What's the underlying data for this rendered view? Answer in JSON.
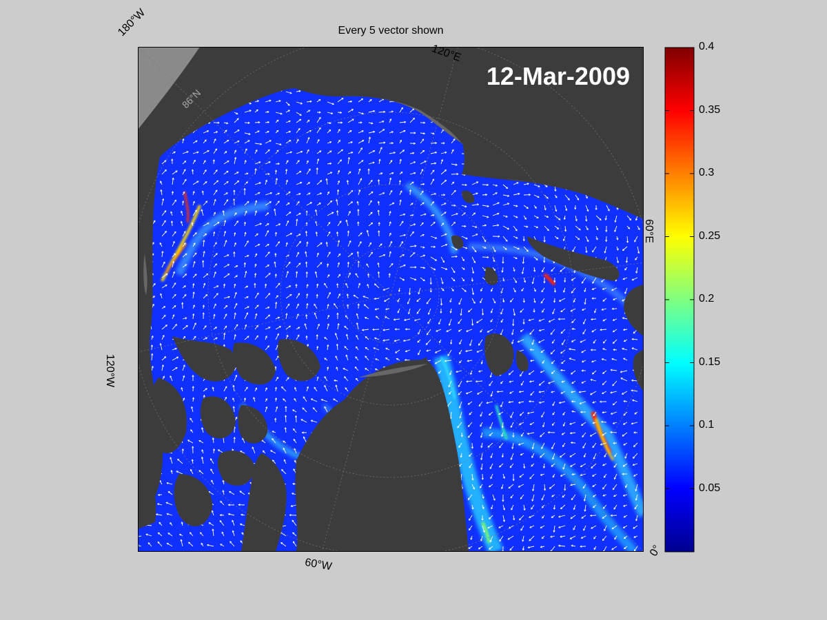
{
  "figure": {
    "title": "Every 5 vector shown",
    "date": "12-Mar-2009"
  },
  "map_labels": {
    "lon_180w": "180°W",
    "lon_120e": "120°E",
    "lon_60e": "60°E",
    "lon_120w": "120°W",
    "lon_60w": "60°W",
    "lon_0": "0°",
    "lat_86n": "86°N"
  },
  "colorbar": {
    "colormap": "jet",
    "min": 0,
    "max": 0.4,
    "ticks": [
      "0.05",
      "0.1",
      "0.15",
      "0.2",
      "0.25",
      "0.3",
      "0.35",
      "0.4"
    ],
    "tick_values": [
      0.05,
      0.1,
      0.15,
      0.2,
      0.25,
      0.3,
      0.35,
      0.4
    ]
  },
  "colors": {
    "background": "#cccccc",
    "land": "#3c3c3c",
    "land_light": "#8a8a8a",
    "vectors": "#ffffff",
    "ice_base": "#1030ff"
  }
}
